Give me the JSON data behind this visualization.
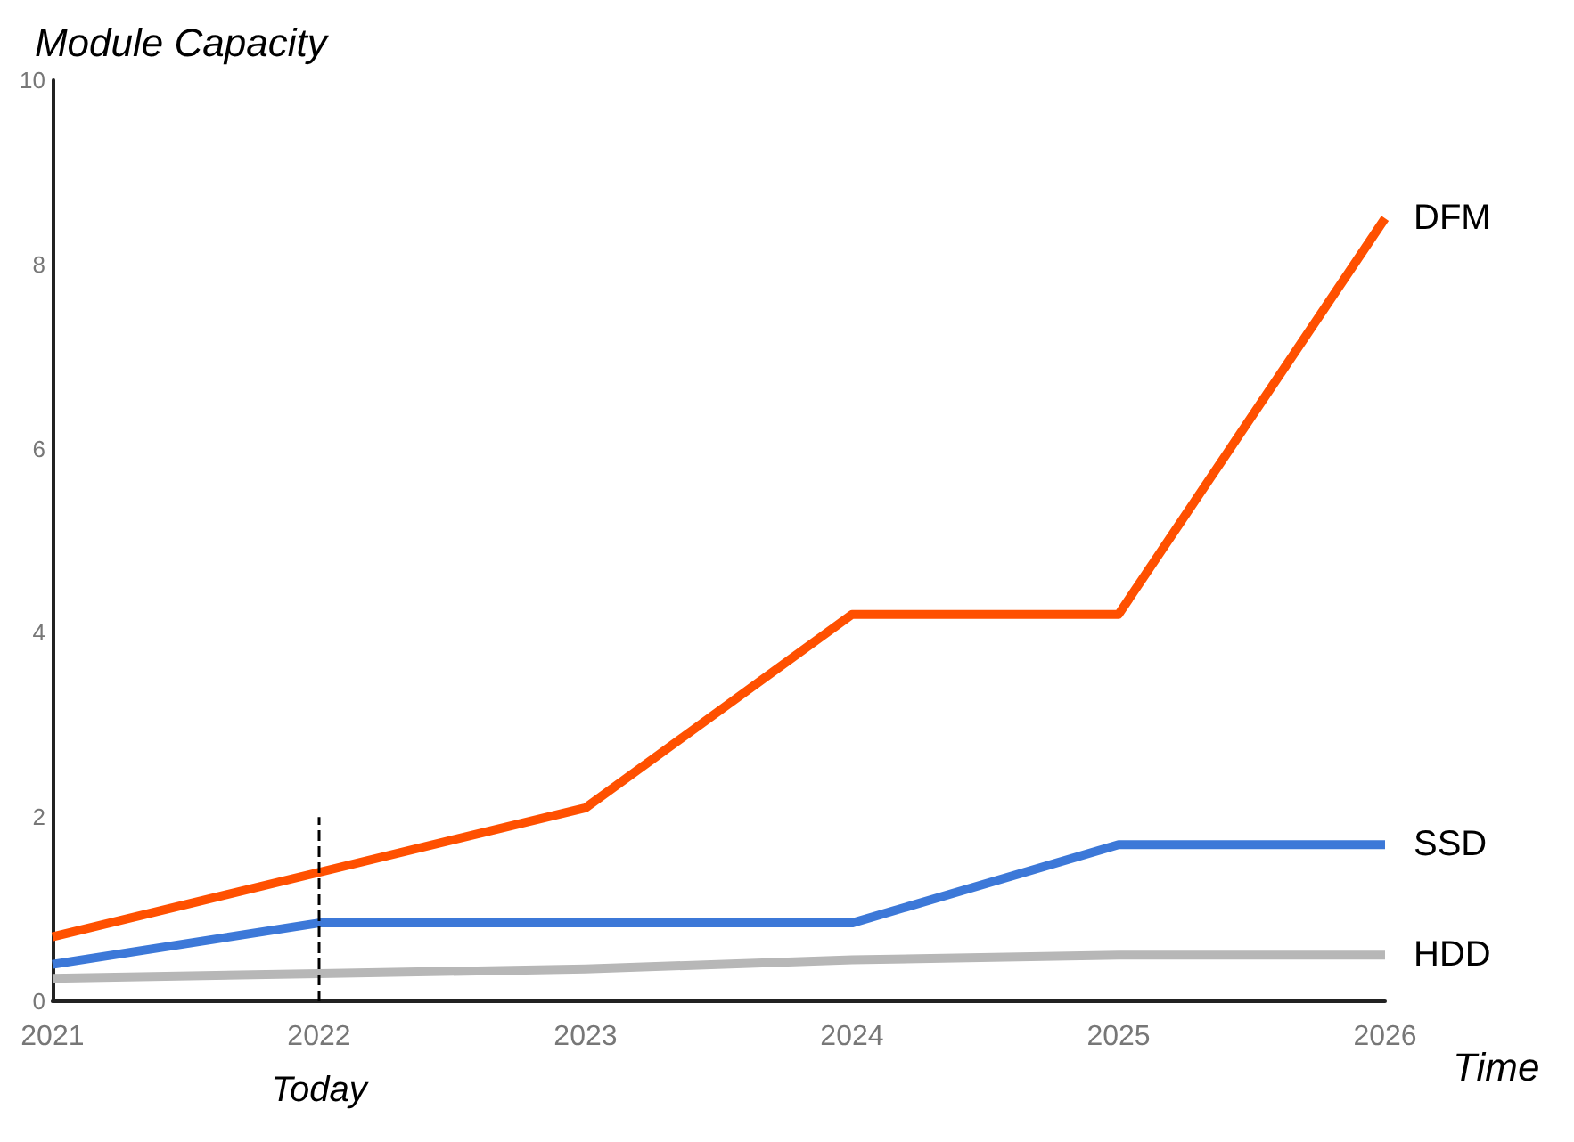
{
  "chart_data": {
    "type": "line",
    "xlabel": "Time",
    "ylabel": "Module Capacity",
    "x": [
      2021,
      2022,
      2023,
      2024,
      2025,
      2026
    ],
    "xlim": [
      2021,
      2026
    ],
    "xticks": [
      2021,
      2022,
      2023,
      2024,
      2025,
      2026
    ],
    "ylim": [
      0,
      10
    ],
    "yticks": [
      0,
      2,
      4,
      6,
      8,
      10
    ],
    "series": [
      {
        "name": "DFM",
        "color": "#ff5000",
        "values": [
          0.7,
          1.4,
          2.1,
          4.2,
          4.2,
          8.5
        ]
      },
      {
        "name": "SSD",
        "color": "#3c78d8",
        "values": [
          0.4,
          0.85,
          0.85,
          0.85,
          1.7,
          1.7
        ]
      },
      {
        "name": "HDD",
        "color": "#b7b7b7",
        "values": [
          0.25,
          0.3,
          0.35,
          0.45,
          0.5,
          0.5
        ]
      }
    ],
    "ref_lines": [
      {
        "axis": "x",
        "value": 2022,
        "label": "Today",
        "line_style": "dashed"
      }
    ],
    "grid": false,
    "legend": false,
    "marker": "none",
    "line_style": "solid"
  }
}
